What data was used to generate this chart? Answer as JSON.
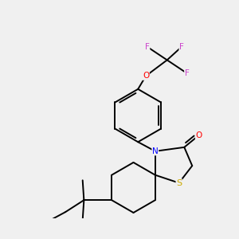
{
  "background_color": "#f0f0f0",
  "atom_colors": {
    "C": "#000000",
    "H": "#000000",
    "N": "#0000ff",
    "O": "#ff0000",
    "S": "#ccaa00",
    "F": "#cc44cc"
  },
  "bond_color": "#000000",
  "bond_width": 1.4,
  "figsize": [
    3.0,
    3.0
  ],
  "dpi": 100,
  "xlim": [
    0,
    10
  ],
  "ylim": [
    0,
    10
  ]
}
